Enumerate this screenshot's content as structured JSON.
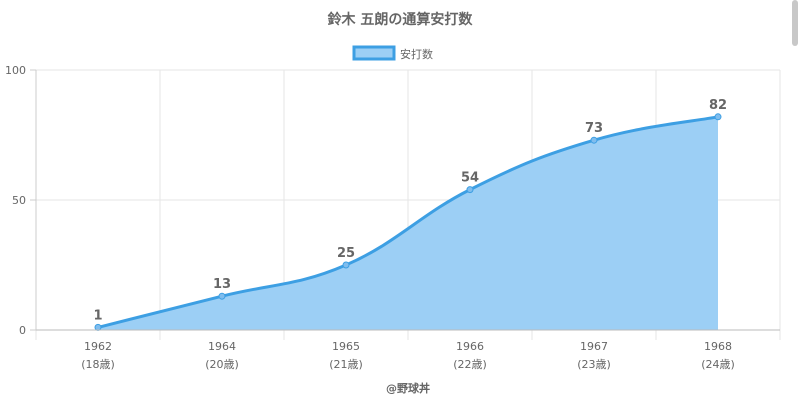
{
  "chart_data": {
    "type": "area",
    "title": "鈴木 五朗の通算安打数",
    "categories": [
      "1962",
      "1964",
      "1965",
      "1966",
      "1967",
      "1968"
    ],
    "sublabels": [
      "(18歳)",
      "(20歳)",
      "(21歳)",
      "(22歳)",
      "(23歳)",
      "(24歳)"
    ],
    "series": [
      {
        "name": "安打数",
        "values": [
          1,
          13,
          25,
          54,
          73,
          82
        ]
      }
    ],
    "data_labels": [
      "1",
      "13",
      "25",
      "54",
      "73",
      "82"
    ],
    "yticks": [
      "0",
      "50",
      "100"
    ],
    "ylim": [
      0,
      100
    ],
    "legend_position": "top",
    "grid": true,
    "footer": "@野球丼",
    "colors": {
      "line": "#3d9fe3",
      "fill": "#9ccff5",
      "text": "#666666",
      "grid": "#e6e6e6"
    }
  }
}
